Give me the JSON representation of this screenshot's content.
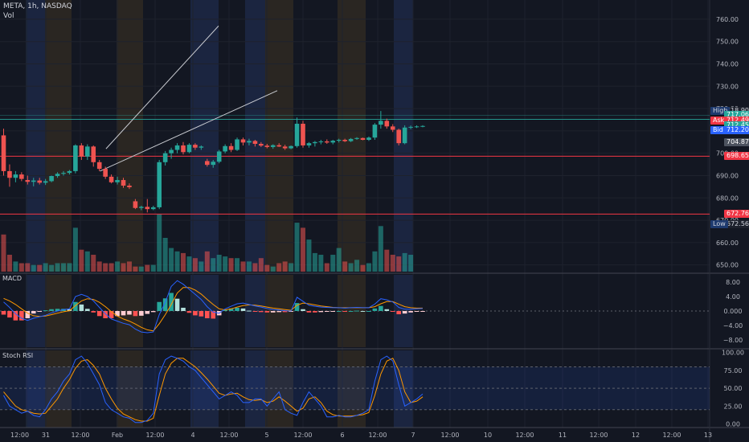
{
  "header": {
    "symbol": "META, 1h, NASDAQ",
    "volume_label": "Vol"
  },
  "macd_pane": {
    "label": "MACD"
  },
  "rsi_pane": {
    "label": "Stoch RSI"
  },
  "colors": {
    "up": "#26a69a",
    "down": "#ef5350",
    "blue": "#2962ff",
    "orange": "#ff9800",
    "bg": "#131722"
  },
  "chart_data": {
    "type": "candlestick",
    "symbol": "META",
    "interval": "1h",
    "exchange": "NASDAQ",
    "price_axis": {
      "ticks": [
        "760.00",
        "750.00",
        "740.00",
        "730.00",
        "720.00",
        "710.00",
        "700.00",
        "690.00",
        "680.00",
        "670.00",
        "660.00",
        "650.00"
      ],
      "range": [
        647,
        765
      ]
    },
    "macd_axis": {
      "ticks": [
        "8.00",
        "4.00",
        "0.000",
        "−4.00",
        "−8.00"
      ],
      "range": [
        -10,
        10
      ]
    },
    "rsi_axis": {
      "ticks": [
        "100.00",
        "75.00",
        "50.00",
        "25.00",
        "0.00"
      ],
      "range": [
        -5,
        103
      ]
    },
    "time_axis": [
      "12:00",
      "31",
      "12:00",
      "Feb",
      "12:00",
      "4",
      "12:00",
      "5",
      "12:00",
      "6",
      "12:00",
      "7",
      "12:00",
      "10",
      "12:00",
      "11",
      "12:00",
      "12",
      "12:00",
      "13"
    ],
    "price_tags": [
      {
        "label": "High",
        "value": "718.90",
        "price": 718.9
      },
      {
        "label": "",
        "value": "717.06",
        "price": 717.06
      },
      {
        "label": "Ask",
        "value": "712.49",
        "price": 714.6
      },
      {
        "label": "",
        "value": "712.45",
        "price": 712.45
      },
      {
        "label": "Bid",
        "value": "712.20",
        "price": 710.3
      },
      {
        "label": "",
        "value": "704.87",
        "price": 704.87
      },
      {
        "label": "",
        "value": "698.65",
        "price": 698.65
      },
      {
        "label": "",
        "value": "672.76",
        "price": 672.76
      },
      {
        "label": "Low",
        "value": "672.56",
        "price": 668.4
      }
    ],
    "horizontal_lines": [
      715.2,
      698.65,
      672.76
    ],
    "trendlines": [
      {
        "from": [
          17.1,
          702
        ],
        "to": [
          35.9,
          757
        ]
      },
      {
        "from": [
          16.1,
          692
        ],
        "to": [
          45.7,
          728
        ]
      }
    ],
    "candles": [
      {
        "o": 708.0,
        "h": 711.0,
        "l": 690.0,
        "c": 692.0
      },
      {
        "o": 692.0,
        "h": 695.0,
        "l": 685.0,
        "c": 689.0
      },
      {
        "o": 689.0,
        "h": 692.0,
        "l": 687.0,
        "c": 690.5
      },
      {
        "o": 690.5,
        "h": 691.5,
        "l": 687.5,
        "c": 688.5
      },
      {
        "o": 688.0,
        "h": 690.0,
        "l": 686.0,
        "c": 687.2
      },
      {
        "o": 687.2,
        "h": 689.0,
        "l": 685.2,
        "c": 687.8
      },
      {
        "o": 687.8,
        "h": 689.0,
        "l": 686.0,
        "c": 686.8
      },
      {
        "o": 686.8,
        "h": 688.5,
        "l": 685.8,
        "c": 687.5
      },
      {
        "o": 687.5,
        "h": 690.0,
        "l": 687.0,
        "c": 689.8
      },
      {
        "o": 689.8,
        "h": 691.5,
        "l": 689.0,
        "c": 690.8
      },
      {
        "o": 690.8,
        "h": 692.0,
        "l": 690.0,
        "c": 691.2
      },
      {
        "o": 691.2,
        "h": 692.5,
        "l": 690.5,
        "c": 692.0
      },
      {
        "o": 692.0,
        "h": 704.0,
        "l": 691.0,
        "c": 703.5
      },
      {
        "o": 703.5,
        "h": 704.5,
        "l": 697.0,
        "c": 698.5
      },
      {
        "o": 698.5,
        "h": 704.0,
        "l": 697.0,
        "c": 703.0
      },
      {
        "o": 703.0,
        "h": 703.5,
        "l": 694.0,
        "c": 696.0
      },
      {
        "o": 696.0,
        "h": 697.0,
        "l": 692.0,
        "c": 693.0
      },
      {
        "o": 693.0,
        "h": 694.0,
        "l": 688.5,
        "c": 689.5
      },
      {
        "o": 689.5,
        "h": 690.5,
        "l": 686.5,
        "c": 687.0
      },
      {
        "o": 687.0,
        "h": 689.5,
        "l": 686.0,
        "c": 688.0
      },
      {
        "o": 688.0,
        "h": 689.0,
        "l": 684.5,
        "c": 685.5
      },
      {
        "o": 685.5,
        "h": 686.5,
        "l": 684.0,
        "c": 684.8
      },
      {
        "o": 678.5,
        "h": 679.5,
        "l": 675.0,
        "c": 675.5
      },
      {
        "o": 675.5,
        "h": 676.5,
        "l": 674.5,
        "c": 676.0
      },
      {
        "o": 676.0,
        "h": 679.5,
        "l": 673.5,
        "c": 675.0
      },
      {
        "o": 675.0,
        "h": 676.5,
        "l": 674.5,
        "c": 675.8
      },
      {
        "o": 675.8,
        "h": 697.0,
        "l": 675.0,
        "c": 696.0
      },
      {
        "o": 696.0,
        "h": 701.0,
        "l": 694.5,
        "c": 700.0
      },
      {
        "o": 700.0,
        "h": 702.5,
        "l": 697.5,
        "c": 701.5
      },
      {
        "o": 701.5,
        "h": 704.5,
        "l": 700.0,
        "c": 703.5
      },
      {
        "o": 703.5,
        "h": 705.0,
        "l": 699.5,
        "c": 700.5
      },
      {
        "o": 700.5,
        "h": 704.5,
        "l": 700.0,
        "c": 703.8
      },
      {
        "o": 703.8,
        "h": 704.5,
        "l": 701.5,
        "c": 702.5
      },
      {
        "o": 702.5,
        "h": 703.5,
        "l": 701.5,
        "c": 703.0
      },
      {
        "o": 696.5,
        "h": 697.5,
        "l": 694.0,
        "c": 694.8
      },
      {
        "o": 694.8,
        "h": 697.0,
        "l": 693.5,
        "c": 696.2
      },
      {
        "o": 696.2,
        "h": 701.5,
        "l": 695.5,
        "c": 700.8
      },
      {
        "o": 700.8,
        "h": 704.0,
        "l": 700.0,
        "c": 703.2
      },
      {
        "o": 703.2,
        "h": 704.5,
        "l": 700.5,
        "c": 701.5
      },
      {
        "o": 701.5,
        "h": 707.0,
        "l": 701.0,
        "c": 706.2
      },
      {
        "o": 706.2,
        "h": 707.0,
        "l": 703.5,
        "c": 704.8
      },
      {
        "o": 704.8,
        "h": 706.5,
        "l": 703.5,
        "c": 705.5
      },
      {
        "o": 705.5,
        "h": 706.0,
        "l": 703.0,
        "c": 704.2
      },
      {
        "o": 704.2,
        "h": 705.0,
        "l": 702.8,
        "c": 703.4
      },
      {
        "o": 703.4,
        "h": 704.2,
        "l": 702.2,
        "c": 702.8
      },
      {
        "o": 702.8,
        "h": 704.0,
        "l": 702.0,
        "c": 703.6
      },
      {
        "o": 703.6,
        "h": 704.5,
        "l": 702.8,
        "c": 703.0
      },
      {
        "o": 703.0,
        "h": 703.8,
        "l": 701.5,
        "c": 702.2
      },
      {
        "o": 702.2,
        "h": 703.5,
        "l": 701.8,
        "c": 703.2
      },
      {
        "o": 703.2,
        "h": 716.0,
        "l": 702.5,
        "c": 713.2
      },
      {
        "o": 713.2,
        "h": 714.5,
        "l": 702.5,
        "c": 703.5
      },
      {
        "o": 703.5,
        "h": 705.0,
        "l": 702.5,
        "c": 704.5
      },
      {
        "o": 704.5,
        "h": 705.5,
        "l": 703.0,
        "c": 705.0
      },
      {
        "o": 705.0,
        "h": 706.0,
        "l": 704.0,
        "c": 705.3
      },
      {
        "o": 705.3,
        "h": 706.2,
        "l": 704.2,
        "c": 704.8
      },
      {
        "o": 704.8,
        "h": 706.0,
        "l": 704.0,
        "c": 705.6
      },
      {
        "o": 705.6,
        "h": 706.5,
        "l": 704.8,
        "c": 706.0
      },
      {
        "o": 706.0,
        "h": 706.5,
        "l": 705.0,
        "c": 705.4
      },
      {
        "o": 705.4,
        "h": 706.8,
        "l": 705.0,
        "c": 706.4
      },
      {
        "o": 706.4,
        "h": 707.2,
        "l": 706.0,
        "c": 706.8
      },
      {
        "o": 706.8,
        "h": 707.0,
        "l": 705.8,
        "c": 706.0
      },
      {
        "o": 706.0,
        "h": 707.5,
        "l": 705.5,
        "c": 707.0
      },
      {
        "o": 707.0,
        "h": 713.5,
        "l": 706.0,
        "c": 712.8
      },
      {
        "o": 712.8,
        "h": 718.9,
        "l": 711.0,
        "c": 714.5
      },
      {
        "o": 714.5,
        "h": 715.5,
        "l": 711.0,
        "c": 712.0
      },
      {
        "o": 712.0,
        "h": 713.0,
        "l": 709.5,
        "c": 710.5
      },
      {
        "o": 710.5,
        "h": 711.0,
        "l": 703.5,
        "c": 704.5
      },
      {
        "o": 704.5,
        "h": 712.5,
        "l": 704.0,
        "c": 711.5
      },
      {
        "o": 711.5,
        "h": 712.4,
        "l": 710.8,
        "c": 711.8
      },
      {
        "o": 711.8,
        "h": 712.5,
        "l": 711.3,
        "c": 712.0
      },
      {
        "o": 712.0,
        "h": 712.5,
        "l": 711.6,
        "c": 712.2
      }
    ],
    "volume": [
      22,
      10,
      6,
      5,
      5,
      4,
      4,
      5,
      4,
      5,
      5,
      5,
      26,
      13,
      12,
      10,
      6,
      5,
      5,
      6,
      5,
      6,
      3,
      3,
      4,
      4,
      34,
      20,
      14,
      12,
      11,
      9,
      8,
      6,
      12,
      8,
      10,
      9,
      8,
      8,
      6,
      6,
      5,
      8,
      4,
      3,
      5,
      6,
      5,
      29,
      26,
      19,
      11,
      10,
      5,
      10,
      14,
      6,
      5,
      7,
      4,
      5,
      12,
      27,
      13,
      10,
      9,
      11,
      10,
      0,
      0
    ],
    "macd_line": [
      2.5,
      1.0,
      -0.8,
      -2.0,
      -2.6,
      -2.0,
      -1.6,
      -1.2,
      -0.5,
      0.0,
      0.4,
      0.6,
      4.0,
      4.6,
      4.0,
      2.8,
      1.0,
      -0.8,
      -2.2,
      -2.8,
      -3.4,
      -3.8,
      -5.0,
      -5.8,
      -6.0,
      -5.8,
      -1.0,
      2.5,
      6.8,
      8.4,
      7.4,
      6.0,
      4.6,
      3.2,
      1.2,
      -0.3,
      -0.6,
      0.6,
      1.3,
      2.0,
      2.2,
      1.8,
      1.4,
      1.1,
      0.7,
      0.4,
      0.3,
      0.1,
      0.0,
      3.8,
      2.7,
      1.6,
      1.3,
      1.1,
      1.0,
      0.9,
      0.9,
      0.8,
      0.9,
      1.0,
      0.9,
      0.9,
      1.9,
      3.4,
      3.1,
      2.5,
      1.0,
      0.5,
      0.5,
      0.6,
      0.7
    ],
    "signal_line": [
      3.5,
      2.8,
      1.8,
      0.6,
      -0.6,
      -1.3,
      -1.5,
      -1.4,
      -1.0,
      -0.6,
      -0.2,
      0.1,
      1.5,
      2.8,
      3.4,
      3.2,
      2.4,
      1.2,
      -0.2,
      -1.4,
      -2.2,
      -2.8,
      -3.6,
      -4.5,
      -5.2,
      -5.5,
      -3.5,
      -1.0,
      1.8,
      5.0,
      6.5,
      6.5,
      5.8,
      4.7,
      3.2,
      1.8,
      0.6,
      0.3,
      0.6,
      1.1,
      1.5,
      1.7,
      1.6,
      1.4,
      1.1,
      0.8,
      0.6,
      0.4,
      0.2,
      1.6,
      2.2,
      2.0,
      1.7,
      1.4,
      1.2,
      1.0,
      0.9,
      0.9,
      0.9,
      0.9,
      0.9,
      0.9,
      1.2,
      2.0,
      2.6,
      2.6,
      1.9,
      1.2,
      0.9,
      0.8,
      0.8
    ],
    "stoch_k": [
      40,
      25,
      20,
      15,
      18,
      12,
      10,
      20,
      35,
      45,
      60,
      70,
      90,
      95,
      85,
      70,
      55,
      30,
      20,
      15,
      10,
      8,
      2,
      2,
      5,
      15,
      70,
      90,
      95,
      92,
      88,
      80,
      75,
      65,
      55,
      45,
      35,
      40,
      45,
      40,
      30,
      30,
      35,
      35,
      25,
      35,
      45,
      20,
      15,
      12,
      30,
      45,
      35,
      25,
      10,
      10,
      12,
      10,
      10,
      12,
      15,
      20,
      60,
      90,
      95,
      88,
      55,
      25,
      30,
      35,
      42
    ],
    "stoch_d": [
      45,
      35,
      25,
      20,
      18,
      15,
      14,
      15,
      25,
      35,
      50,
      62,
      78,
      88,
      90,
      82,
      70,
      50,
      35,
      22,
      14,
      10,
      6,
      4,
      4,
      8,
      40,
      70,
      85,
      92,
      92,
      86,
      80,
      72,
      63,
      53,
      43,
      40,
      42,
      43,
      38,
      34,
      33,
      34,
      30,
      32,
      38,
      32,
      25,
      18,
      22,
      35,
      38,
      30,
      18,
      13,
      11,
      11,
      11,
      12,
      13,
      16,
      40,
      70,
      88,
      92,
      75,
      45,
      30,
      32,
      38
    ]
  }
}
